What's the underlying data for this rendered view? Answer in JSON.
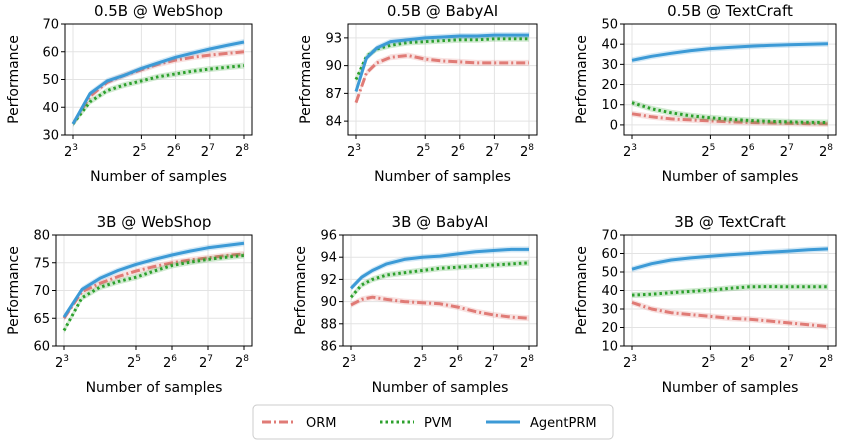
{
  "chart_data": [
    {
      "type": "line",
      "title": "0.5B @ WebShop",
      "xlabel": "Number of samples",
      "ylabel": "Performance",
      "x_ticks": [
        3,
        5,
        6,
        7,
        8
      ],
      "x_scale": "log2",
      "ylim": [
        30,
        70
      ],
      "y_ticks": [
        "30",
        "40",
        "50",
        "60",
        "70"
      ],
      "x": [
        3,
        3.5,
        4,
        4.5,
        5,
        5.5,
        6,
        6.5,
        7,
        7.5,
        8
      ],
      "series": [
        {
          "name": "ORM",
          "values": [
            34,
            44,
            49,
            51.5,
            53.5,
            55.5,
            57,
            58,
            58.8,
            59.4,
            60
          ]
        },
        {
          "name": "PVM",
          "values": [
            34,
            42,
            46,
            48,
            49.5,
            51,
            52,
            53,
            53.8,
            54.4,
            55
          ]
        },
        {
          "name": "AgentPRM",
          "values": [
            34,
            45,
            49.5,
            51.5,
            54,
            56,
            58,
            59.5,
            61,
            62.3,
            63.5
          ]
        }
      ]
    },
    {
      "type": "line",
      "title": "0.5B @ BabyAI",
      "xlabel": "Number of samples",
      "ylabel": "Performance",
      "x_ticks": [
        3,
        5,
        6,
        7,
        8
      ],
      "x_scale": "log2",
      "ylim": [
        82.5,
        94.5
      ],
      "y_ticks": [
        "84",
        "87",
        "90",
        "93"
      ],
      "x": [
        3,
        3.3,
        3.6,
        4,
        4.5,
        5,
        5.5,
        6,
        6.5,
        7,
        7.5,
        8
      ],
      "series": [
        {
          "name": "ORM",
          "values": [
            86,
            89.2,
            90.3,
            90.9,
            91.1,
            90.7,
            90.5,
            90.4,
            90.3,
            90.3,
            90.3,
            90.3
          ]
        },
        {
          "name": "PVM",
          "values": [
            88.5,
            91,
            91.8,
            92.2,
            92.5,
            92.6,
            92.7,
            92.8,
            92.8,
            92.9,
            92.9,
            92.9
          ]
        },
        {
          "name": "AgentPRM",
          "values": [
            87.2,
            90.8,
            91.9,
            92.6,
            92.8,
            93,
            93.1,
            93.2,
            93.2,
            93.3,
            93.3,
            93.3
          ]
        }
      ]
    },
    {
      "type": "line",
      "title": "0.5B @ TextCraft",
      "xlabel": "Number of samples",
      "ylabel": "Performance",
      "x_ticks": [
        3,
        5,
        6,
        7,
        8
      ],
      "x_scale": "log2",
      "ylim": [
        -5,
        50
      ],
      "y_ticks": [
        "0",
        "10",
        "20",
        "30",
        "40",
        "50"
      ],
      "x": [
        3,
        3.5,
        4,
        4.5,
        5,
        5.5,
        6,
        6.5,
        7,
        7.5,
        8
      ],
      "series": [
        {
          "name": "ORM",
          "values": [
            5.5,
            4,
            3,
            2.5,
            2,
            1.5,
            1.2,
            1,
            0.8,
            0.6,
            0.5
          ]
        },
        {
          "name": "PVM",
          "values": [
            11,
            8,
            6,
            4.5,
            3.5,
            2.8,
            2.2,
            1.8,
            1.5,
            1.3,
            1.2
          ]
        },
        {
          "name": "AgentPRM",
          "values": [
            32,
            34,
            35.5,
            36.8,
            37.8,
            38.4,
            39,
            39.4,
            39.7,
            40,
            40.2
          ]
        }
      ]
    },
    {
      "type": "line",
      "title": "3B @ WebShop",
      "xlabel": "Number of samples",
      "ylabel": "Performance",
      "x_ticks": [
        3,
        5,
        6,
        7,
        8
      ],
      "x_scale": "log2",
      "ylim": [
        60,
        80
      ],
      "y_ticks": [
        "60",
        "65",
        "70",
        "75",
        "80"
      ],
      "x": [
        3,
        3.5,
        4,
        4.5,
        5,
        5.5,
        6,
        6.5,
        7,
        7.5,
        8
      ],
      "series": [
        {
          "name": "ORM",
          "values": [
            65,
            69.8,
            71.3,
            72.5,
            73.5,
            74.3,
            75,
            75.5,
            75.9,
            76.3,
            76.6
          ]
        },
        {
          "name": "PVM",
          "values": [
            62.8,
            68.7,
            70.6,
            71.6,
            72.4,
            73.5,
            74.5,
            75.1,
            75.6,
            76,
            76.3
          ]
        },
        {
          "name": "AgentPRM",
          "values": [
            65.2,
            70.2,
            72.2,
            73.6,
            74.7,
            75.6,
            76.4,
            77.1,
            77.7,
            78.1,
            78.5
          ]
        }
      ]
    },
    {
      "type": "line",
      "title": "3B @ BabyAI",
      "xlabel": "Number of samples",
      "ylabel": "Performance",
      "x_ticks": [
        3,
        5,
        6,
        7,
        8
      ],
      "x_scale": "log2",
      "ylim": [
        86,
        96
      ],
      "y_ticks": [
        "86",
        "88",
        "90",
        "92",
        "94",
        "96"
      ],
      "x": [
        3,
        3.3,
        3.6,
        4,
        4.5,
        5,
        5.5,
        6,
        6.5,
        7,
        7.5,
        8
      ],
      "series": [
        {
          "name": "ORM",
          "values": [
            89.7,
            90.2,
            90.4,
            90.2,
            90,
            89.9,
            89.8,
            89.5,
            89.1,
            88.8,
            88.6,
            88.5
          ]
        },
        {
          "name": "PVM",
          "values": [
            90.4,
            91.5,
            92,
            92.4,
            92.6,
            92.8,
            93,
            93.1,
            93.2,
            93.3,
            93.4,
            93.5
          ]
        },
        {
          "name": "AgentPRM",
          "values": [
            91.2,
            92.2,
            92.8,
            93.4,
            93.8,
            94,
            94.1,
            94.3,
            94.5,
            94.6,
            94.7,
            94.7
          ]
        }
      ]
    },
    {
      "type": "line",
      "title": "3B @ TextCraft",
      "xlabel": "Number of samples",
      "ylabel": "Performance",
      "x_ticks": [
        3,
        5,
        6,
        7,
        8
      ],
      "x_scale": "log2",
      "ylim": [
        10,
        70
      ],
      "y_ticks": [
        "10",
        "20",
        "30",
        "40",
        "50",
        "60",
        "70"
      ],
      "x": [
        3,
        3.5,
        4,
        4.5,
        5,
        5.5,
        6,
        6.5,
        7,
        7.5,
        8
      ],
      "series": [
        {
          "name": "ORM",
          "values": [
            33.5,
            30,
            28,
            27,
            26,
            25,
            24.5,
            23.5,
            22.5,
            21.5,
            20.5
          ]
        },
        {
          "name": "PVM",
          "values": [
            37.5,
            38,
            38.8,
            39.5,
            40.2,
            41.2,
            42,
            42.1,
            42,
            42,
            42
          ]
        },
        {
          "name": "AgentPRM",
          "values": [
            51.5,
            54.5,
            56.5,
            57.6,
            58.5,
            59.3,
            60,
            60.7,
            61.3,
            62,
            62.5
          ]
        }
      ]
    }
  ],
  "legend": {
    "position": "bottom-center",
    "entries": [
      {
        "name": "ORM",
        "color": "#e07b76",
        "style": "dashdot"
      },
      {
        "name": "PVM",
        "color": "#2ca02c",
        "style": "dotted"
      },
      {
        "name": "AgentPRM",
        "color": "#3c9ad6",
        "style": "solid"
      }
    ]
  },
  "colors": {
    "ORM": "#e07b76",
    "PVM": "#2ca02c",
    "AgentPRM": "#3c9ad6"
  }
}
